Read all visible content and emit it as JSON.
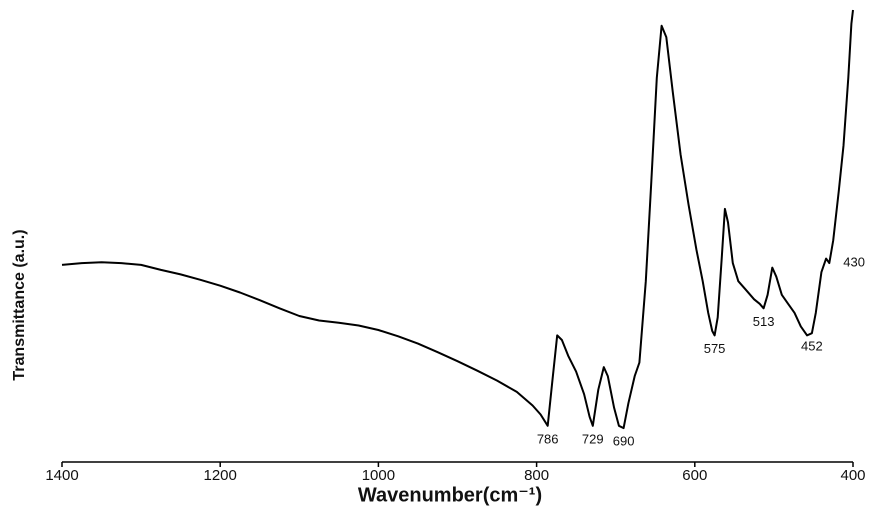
{
  "chart_data": {
    "type": "line",
    "x_label": "Wavenumber(cm⁻¹)",
    "y_label": "Transmittance (a.u.)",
    "xlim": [
      1400,
      400
    ],
    "xticks": [
      1400,
      1200,
      1000,
      800,
      600,
      400
    ],
    "ylim": [
      0,
      100
    ],
    "color": "#000000",
    "x": [
      1400,
      1375,
      1350,
      1325,
      1300,
      1275,
      1250,
      1225,
      1200,
      1175,
      1150,
      1125,
      1100,
      1075,
      1050,
      1025,
      1000,
      975,
      950,
      925,
      900,
      875,
      850,
      825,
      805,
      795,
      786,
      780,
      774,
      768,
      760,
      750,
      740,
      733,
      729,
      722,
      715,
      710,
      702,
      696,
      690,
      684,
      676,
      670,
      662,
      655,
      648,
      642,
      636,
      628,
      618,
      608,
      598,
      590,
      583,
      578,
      575,
      571,
      566,
      562,
      558,
      552,
      545,
      535,
      525,
      518,
      513,
      508,
      502,
      497,
      490,
      482,
      474,
      466,
      458,
      452,
      447,
      440,
      434,
      430,
      425,
      418,
      412,
      406,
      402,
      400
    ],
    "y": [
      43.6,
      44,
      44.2,
      44,
      43.6,
      42.5,
      41.5,
      40.3,
      39,
      37.5,
      35.8,
      34,
      32.3,
      31.3,
      30.8,
      30.2,
      29.2,
      27.8,
      26.2,
      24.3,
      22.3,
      20.2,
      18,
      15.5,
      12.5,
      10.5,
      8,
      18,
      28,
      27,
      23.5,
      20,
      15,
      10,
      8,
      16,
      21,
      19,
      12,
      8,
      7.5,
      13,
      19,
      22,
      40,
      62,
      85,
      96.5,
      94,
      82,
      68,
      57,
      47,
      40,
      33,
      29,
      28,
      32,
      45,
      56,
      53,
      44,
      40,
      38,
      36,
      35,
      34,
      37,
      43,
      41,
      37,
      35,
      33,
      30,
      28,
      28.5,
      33,
      42,
      45,
      44,
      49,
      60,
      70,
      85,
      97,
      100
    ],
    "annotations": [
      "786",
      "729",
      "690",
      "575",
      "513",
      "452",
      "430"
    ]
  }
}
